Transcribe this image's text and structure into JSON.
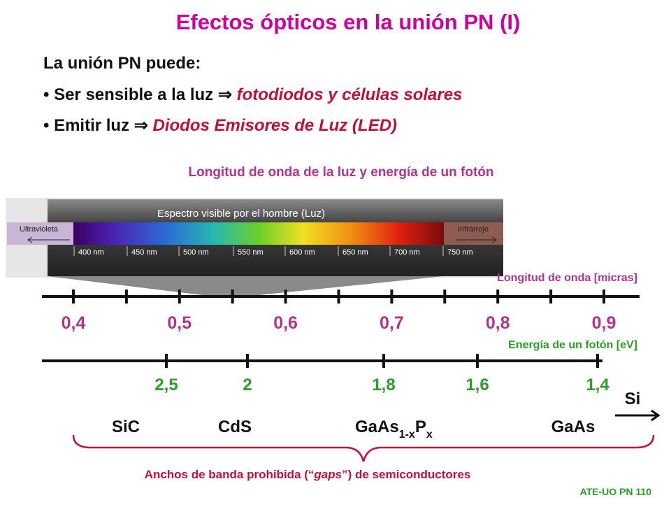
{
  "title": "Efectos ópticos en la unión PN (I)",
  "intro": "La unión PN puede:",
  "bullets": [
    {
      "text": "Ser sensible a la luz",
      "symbol": "⇒",
      "emphasis": "fotodiodos y células solares"
    },
    {
      "text": "Emitir luz",
      "symbol": "⇒",
      "emphasis": "Diodos Emisores de Luz (LED)"
    }
  ],
  "spectrum": {
    "heading": "Longitud de onda de la luz y energía de un fotón",
    "banner": "Espectro visible por el hombre (Luz)",
    "left": "Ultravioleta",
    "right": "Infrarrojo",
    "nm_labels": [
      "400 nm",
      "450 nm",
      "500 nm",
      "550 nm",
      "600 nm",
      "650 nm",
      "700 nm",
      "750 nm"
    ]
  },
  "wavelength_axis": {
    "label": "Longitud de onda [micras]",
    "tick_labels": [
      "0,4",
      "0,5",
      "0,6",
      "0,7",
      "0,8",
      "0,9"
    ]
  },
  "energy_axis": {
    "label": "Energía de un fotón [eV]",
    "tick_labels": [
      "2,5",
      "2",
      "1,8",
      "1,6",
      "1,4"
    ]
  },
  "materials": {
    "sic": "SiC",
    "cds": "CdS",
    "gaasp": [
      "GaAs",
      "1-x",
      "P",
      "x"
    ],
    "gaas": "GaAs",
    "si": "Si"
  },
  "caption": [
    "Anchos de banda prohibida (“",
    "gaps",
    "”) de semiconductores"
  ],
  "footer": "ATE-UO PN 110"
}
